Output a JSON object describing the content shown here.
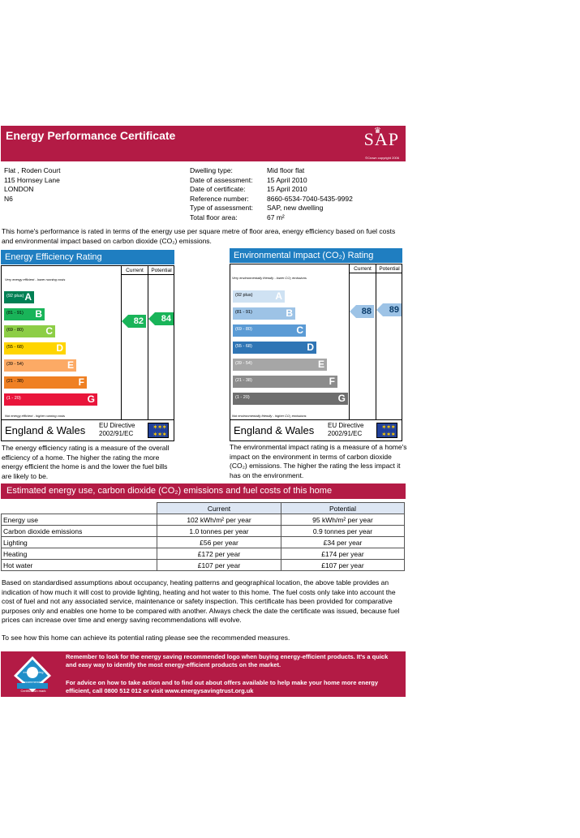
{
  "header": {
    "title": "Energy Performance Certificate",
    "logo_text": "SAP",
    "logo_crown": "♛",
    "copyright": "©Crown copyright 2006"
  },
  "address": {
    "line1": "Flat     , Roden Court",
    "line2": "115 Hornsey Lane",
    "line3": "LONDON",
    "line4": "N6"
  },
  "details": [
    {
      "label": "Dwelling type:",
      "value": "Mid floor flat"
    },
    {
      "label": "Date of assessment:",
      "value": "15 April 2010"
    },
    {
      "label": "Date of certificate:",
      "value": "15 April 2010"
    },
    {
      "label": "Reference number:",
      "value": "8660-6534-7040-5435-9992"
    },
    {
      "label": "Type of assessment:",
      "value": "SAP, new dwelling"
    },
    {
      "label": "Total floor area:",
      "value": "67 m²"
    }
  ],
  "intro": "This home's performance is rated in terms of the energy use per square metre of floor area, energy efficiency based on fuel costs and environmental impact based on carbon dioxide (CO₂) emissions.",
  "efficiency": {
    "title": "Energy Efficiency Rating",
    "col_current": "Current",
    "col_potential": "Potential",
    "top_note": "Very energy efficient - lower running costs",
    "bottom_note": "Not energy efficient - higher running costs",
    "bands": [
      {
        "range": "(92 plus)",
        "letter": "A",
        "color": "#008054"
      },
      {
        "range": "(81 - 91)",
        "letter": "B",
        "color": "#19b459"
      },
      {
        "range": "(69 - 80)",
        "letter": "C",
        "color": "#8dce46"
      },
      {
        "range": "(55 - 68)",
        "letter": "D",
        "color": "#ffd500"
      },
      {
        "range": "(39 - 54)",
        "letter": "E",
        "color": "#fcaa65"
      },
      {
        "range": "(21 - 38)",
        "letter": "F",
        "color": "#ef8023"
      },
      {
        "range": "(1 - 20)",
        "letter": "G",
        "color": "#e9153b"
      }
    ],
    "current": "82",
    "potential": "84",
    "arrow_color": "#19b459",
    "country": "England & Wales",
    "eu_directive": "EU Directive",
    "eu_code": "2002/91/EC",
    "description": "The energy efficiency rating is a measure of the overall efficiency of a home. The higher the rating the more energy efficient the home is and the lower the fuel bills are likely to be."
  },
  "environmental": {
    "title": "Environmental Impact (CO₂) Rating",
    "col_current": "Current",
    "col_potential": "Potential",
    "top_note": "Very environmentally friendly - lower CO₂ emissions",
    "bottom_note": "Not environmentally friendly - higher CO₂ emissions",
    "bands": [
      {
        "range": "(92 plus)",
        "letter": "A",
        "color": "#cfe2f3"
      },
      {
        "range": "(81 - 91)",
        "letter": "B",
        "color": "#9dc3e6"
      },
      {
        "range": "(69 - 80)",
        "letter": "C",
        "color": "#5b9bd5"
      },
      {
        "range": "(55 - 68)",
        "letter": "D",
        "color": "#2f75b5"
      },
      {
        "range": "(39 - 54)",
        "letter": "E",
        "color": "#a6a6a6"
      },
      {
        "range": "(21 - 38)",
        "letter": "F",
        "color": "#8c8c8c"
      },
      {
        "range": "(1 - 20)",
        "letter": "G",
        "color": "#6e6e6e"
      }
    ],
    "current": "88",
    "potential": "89",
    "arrow_color": "#9dc3e6",
    "country": "England & Wales",
    "eu_directive": "EU Directive",
    "eu_code": "2002/91/EC",
    "description": "The environmental impact rating is a measure of a home's impact on the environment in terms of carbon dioxide (CO₂) emissions. The higher the rating the less impact it has on the environment."
  },
  "estimated": {
    "title": "Estimated energy use, carbon dioxide (CO₂) emissions and fuel costs of this home",
    "col_current": "Current",
    "col_potential": "Potential",
    "rows": [
      {
        "label": "Energy use",
        "current": "102 kWh/m² per year",
        "potential": "95 kWh/m² per year"
      },
      {
        "label": "Carbon dioxide emissions",
        "current": "1.0 tonnes per year",
        "potential": "0.9 tonnes per year"
      },
      {
        "label": "Lighting",
        "current": "£56 per year",
        "potential": "£34 per year"
      },
      {
        "label": "Heating",
        "current": "£172 per year",
        "potential": "£174 per year"
      },
      {
        "label": "Hot water",
        "current": "£107 per year",
        "potential": "£107 per year"
      }
    ]
  },
  "assumptions": "Based on standardised assumptions about occupancy, heating patterns and geographical location, the above table provides an indication of how much it will cost to provide lighting, heating and hot water to this home. The fuel costs only take into account the cost of fuel and not any associated service, maintenance or safety inspection. This certificate has been provided for comparative purposes only and enables one home to be compared with another. Always check the date the certificate was issued, because fuel prices can increase over time and energy saving recommendations will evolve.",
  "recommend_line": "To see how this home can achieve its potential rating please see the recommended measures.",
  "banner": {
    "para1": "Remember to look for the energy saving recommended logo when buying energy-efficient products. It's a quick and easy way to identify the most energy-efficient products on the market.",
    "para2": "For advice on how to take action and to find out about offers available to help make your home more energy efficient, call 0800 512 012 or visit www.energysavingtrust.org.uk",
    "logo_line1": "energy saving",
    "logo_line2": "recommended",
    "logo_line3": "Certification mark"
  }
}
